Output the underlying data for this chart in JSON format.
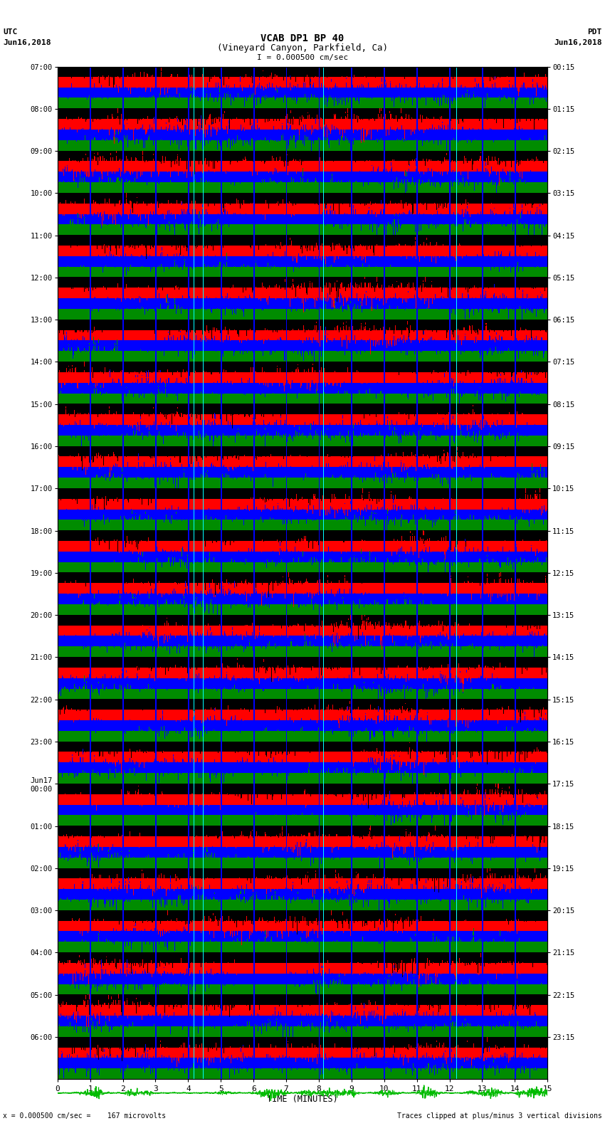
{
  "title_line1": "VCAB DP1 BP 40",
  "title_line2": "(Vineyard Canyon, Parkfield, Ca)",
  "scale_text": "I = 0.000500 cm/sec",
  "utc_label": "UTC",
  "utc_date": "Jun16,2018",
  "pdt_label": "PDT",
  "pdt_date": "Jun16,2018",
  "left_times": [
    "07:00",
    "08:00",
    "09:00",
    "10:00",
    "11:00",
    "12:00",
    "13:00",
    "14:00",
    "15:00",
    "16:00",
    "17:00",
    "18:00",
    "19:00",
    "20:00",
    "21:00",
    "22:00",
    "23:00",
    "Jun17\n00:00",
    "01:00",
    "02:00",
    "03:00",
    "04:00",
    "05:00",
    "06:00"
  ],
  "right_times": [
    "00:15",
    "01:15",
    "02:15",
    "03:15",
    "04:15",
    "05:15",
    "06:15",
    "07:15",
    "08:15",
    "09:15",
    "10:15",
    "11:15",
    "12:15",
    "13:15",
    "14:15",
    "15:15",
    "16:15",
    "17:15",
    "18:15",
    "19:15",
    "20:15",
    "21:15",
    "22:15",
    "23:15"
  ],
  "bottom_label": "TIME (MINUTES)",
  "bottom_note": "= 0.000500 cm/sec =    167 microvolts",
  "bottom_note2": "Traces clipped at plus/minus 3 vertical divisions",
  "n_rows": 24,
  "n_cols": 750,
  "bg_color": "#ffffff",
  "fig_width": 8.5,
  "fig_height": 16.13
}
